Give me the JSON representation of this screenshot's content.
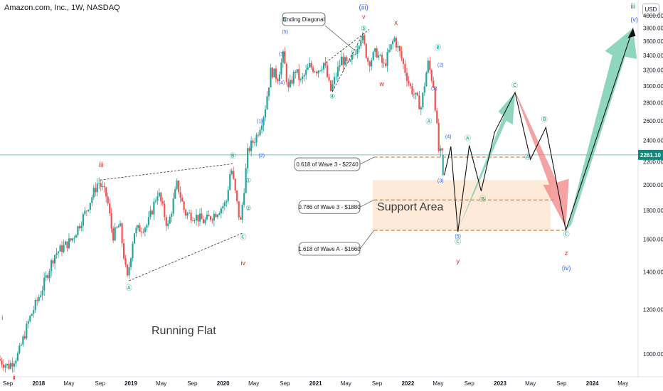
{
  "header": {
    "title": "Amazon.com, Inc., 1W, NASDAQ",
    "currency": "USD"
  },
  "colors": {
    "up": "#26a69a",
    "down": "#ef5350",
    "wave_blue": "#2962ff",
    "wave_red": "#d32f2f",
    "wave_green": "#089981",
    "fib": "#e07b1a",
    "support_fill": "#fde3cc",
    "green_arrow": "#5fc4a4",
    "red_arrow": "#f07a7a",
    "price_line": "#4db6ac",
    "price_tag": "#0d8a80"
  },
  "chart_data": {
    "type": "candlestick",
    "title": "Amazon.com, Inc., 1W, NASDAQ",
    "y_axis": {
      "scale": "log",
      "range": [
        900,
        4200
      ],
      "ticks": [
        1000,
        1200,
        1400,
        1600,
        1800,
        2000,
        2200,
        2400,
        2600,
        2800,
        3000,
        3200,
        3400,
        3600,
        3800,
        4000
      ],
      "tick_labels": [
        "1000.00",
        "1200.00",
        "1400.00",
        "1600.00",
        "1800.00",
        "2000.00",
        "2200.00",
        "2400.00",
        "2600.00",
        "2800.00",
        "3000.00",
        "3200.00",
        "3400.00",
        "3600.00",
        "3800.00",
        "4000.00"
      ],
      "position": "right"
    },
    "x_axis": {
      "range": [
        "2017-08-01",
        "2024-06-30"
      ],
      "ticks": [
        {
          "date": "2017-09-01",
          "label": "Sep"
        },
        {
          "date": "2018-01-01",
          "label": "2018"
        },
        {
          "date": "2018-05-01",
          "label": "May"
        },
        {
          "date": "2018-09-01",
          "label": "Sep"
        },
        {
          "date": "2019-01-01",
          "label": "2019"
        },
        {
          "date": "2019-05-01",
          "label": "May"
        },
        {
          "date": "2019-09-01",
          "label": "Sep"
        },
        {
          "date": "2020-01-01",
          "label": "2020"
        },
        {
          "date": "2020-05-01",
          "label": "May"
        },
        {
          "date": "2020-09-01",
          "label": "Sep"
        },
        {
          "date": "2021-01-01",
          "label": "2021"
        },
        {
          "date": "2021-05-01",
          "label": "May"
        },
        {
          "date": "2021-09-01",
          "label": "Sep"
        },
        {
          "date": "2022-01-01",
          "label": "2022"
        },
        {
          "date": "2022-05-01",
          "label": "May"
        },
        {
          "date": "2022-09-01",
          "label": "Sep"
        },
        {
          "date": "2023-01-01",
          "label": "2023"
        },
        {
          "date": "2023-05-01",
          "label": "May"
        },
        {
          "date": "2023-09-01",
          "label": "Sep"
        },
        {
          "date": "2024-01-01",
          "label": "2024"
        },
        {
          "date": "2024-05-01",
          "label": "May"
        }
      ]
    },
    "price_path": [
      [
        "2017-08-01",
        980
      ],
      [
        "2017-09-10",
        950
      ],
      [
        "2017-10-20",
        1000
      ],
      [
        "2017-12-01",
        1150
      ],
      [
        "2018-01-20",
        1300
      ],
      [
        "2018-03-10",
        1500
      ],
      [
        "2018-05-20",
        1600
      ],
      [
        "2018-07-15",
        1800
      ],
      [
        "2018-09-01",
        2030
      ],
      [
        "2018-10-05",
        1900
      ],
      [
        "2018-10-28",
        1620
      ],
      [
        "2018-11-25",
        1700
      ],
      [
        "2018-12-24",
        1350
      ],
      [
        "2019-01-20",
        1650
      ],
      [
        "2019-03-15",
        1700
      ],
      [
        "2019-04-25",
        1950
      ],
      [
        "2019-06-03",
        1680
      ],
      [
        "2019-07-10",
        2010
      ],
      [
        "2019-08-10",
        1780
      ],
      [
        "2019-09-20",
        1760
      ],
      [
        "2019-10-25",
        1720
      ],
      [
        "2019-12-01",
        1770
      ],
      [
        "2020-01-20",
        1860
      ],
      [
        "2020-02-08",
        2160
      ],
      [
        "2020-03-16",
        1700
      ],
      [
        "2020-04-15",
        2300
      ],
      [
        "2020-05-20",
        2450
      ],
      [
        "2020-06-20",
        2700
      ],
      [
        "2020-07-15",
        3200
      ],
      [
        "2020-08-10",
        3100
      ],
      [
        "2020-09-02",
        3400
      ],
      [
        "2020-09-22",
        2950
      ],
      [
        "2020-10-20",
        3200
      ],
      [
        "2020-11-10",
        3050
      ],
      [
        "2020-12-15",
        3250
      ],
      [
        "2021-01-15",
        3200
      ],
      [
        "2021-02-10",
        3300
      ],
      [
        "2021-03-08",
        2930
      ],
      [
        "2021-04-20",
        3350
      ],
      [
        "2021-05-20",
        3250
      ],
      [
        "2021-07-08",
        3700
      ],
      [
        "2021-08-05",
        3300
      ],
      [
        "2021-09-05",
        3450
      ],
      [
        "2021-10-05",
        3250
      ],
      [
        "2021-11-15",
        3650
      ],
      [
        "2021-12-10",
        3400
      ],
      [
        "2022-01-15",
        3000
      ],
      [
        "2022-02-10",
        2850
      ],
      [
        "2022-03-01",
        2750
      ],
      [
        "2022-03-28",
        3300
      ],
      [
        "2022-04-20",
        3000
      ],
      [
        "2022-05-10",
        2300
      ],
      [
        "2022-05-20",
        2261.1
      ]
    ],
    "last_price": "2261.10",
    "fibonacci_levels": [
      {
        "label": "0.618 of Wave 3 - $2240",
        "price": 2240
      },
      {
        "label": "0.786 of Wave 3 - $1880",
        "price": 1880
      },
      {
        "label": "1.618 of Wave A - $1660",
        "price": 1660
      }
    ],
    "support_area": {
      "label": "Support Area",
      "range": [
        1660,
        2040
      ]
    },
    "annotations": {
      "ending_diagonal": "Ending Diagonal",
      "running_flat": "Running Flat",
      "wave_labels": [
        "i",
        "ii",
        "iii",
        "iv",
        "(iii)",
        "v",
        "x",
        "w",
        "y",
        "z",
        "(iv)",
        "(v)",
        "iii",
        "(1)",
        "(2)",
        "(3)",
        "(4)",
        "(5)",
        "①",
        "②",
        "③",
        "④",
        "⑤",
        "Ⓐ",
        "Ⓑ",
        "Ⓒ"
      ]
    },
    "grid": false,
    "legend": "none"
  }
}
